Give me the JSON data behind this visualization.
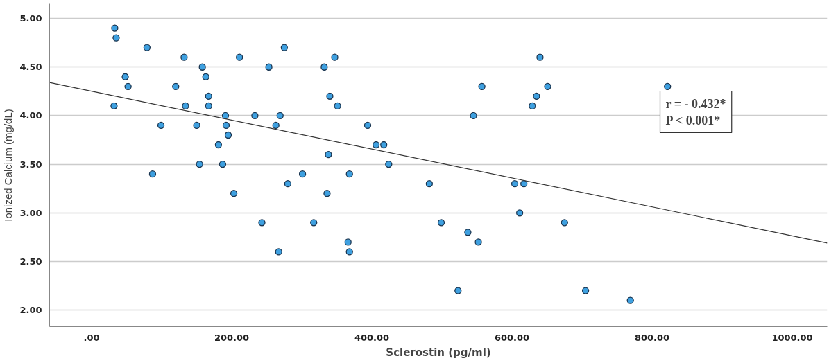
{
  "chart_data": {
    "type": "scatter",
    "xlabel": "Sclerostin (pg/ml)",
    "ylabel": "Ionized Calcium (mg/dL)",
    "xlim": [
      -60,
      1050
    ],
    "ylim": [
      1.83,
      5.15
    ],
    "xticks": [
      {
        "value": 0,
        "label": ".00"
      },
      {
        "value": 200,
        "label": "200.00"
      },
      {
        "value": 400,
        "label": "400.00"
      },
      {
        "value": 600,
        "label": "600.00"
      },
      {
        "value": 800,
        "label": "800.00"
      },
      {
        "value": 1000,
        "label": "1000.00"
      }
    ],
    "yticks": [
      {
        "value": 2,
        "label": "2.00"
      },
      {
        "value": 2.5,
        "label": "2.50"
      },
      {
        "value": 3,
        "label": "3.00"
      },
      {
        "value": 3.5,
        "label": "3.50"
      },
      {
        "value": 4,
        "label": "4.00"
      },
      {
        "value": 4.5,
        "label": "4.50"
      },
      {
        "value": 5,
        "label": "5.00"
      }
    ],
    "grid": "y",
    "marker": "circle",
    "annotations": [
      "r = - 0.432*",
      "P < 0.001*"
    ],
    "series": [
      {
        "color": "#3ea0e0",
        "x": [
          33,
          35,
          79,
          132,
          211,
          275,
          347,
          158,
          253,
          332,
          48,
          163,
          52,
          120,
          167,
          340,
          32,
          134,
          167,
          351,
          191,
          233,
          269,
          99,
          150,
          192,
          263,
          195,
          181,
          338,
          154,
          187,
          87,
          301,
          280,
          557,
          651,
          640,
          635,
          629,
          545,
          394,
          406,
          417,
          424,
          368,
          482,
          604,
          617,
          822,
          675,
          705,
          769,
          203,
          336,
          243,
          317,
          267,
          499,
          537,
          552,
          366,
          368,
          611,
          523
        ],
        "values": [
          4.9,
          4.8,
          4.7,
          4.6,
          4.6,
          4.7,
          4.6,
          4.5,
          4.5,
          4.5,
          4.4,
          4.4,
          4.3,
          4.3,
          4.2,
          4.2,
          4.1,
          4.1,
          4.1,
          4.1,
          4.0,
          4.0,
          4.0,
          3.9,
          3.9,
          3.9,
          3.9,
          3.8,
          3.7,
          3.6,
          3.5,
          3.5,
          3.4,
          3.4,
          3.3,
          4.3,
          4.3,
          4.6,
          4.2,
          4.1,
          4.0,
          3.9,
          3.7,
          3.7,
          3.5,
          3.4,
          3.3,
          3.3,
          3.3,
          4.3,
          2.9,
          2.2,
          2.1,
          3.2,
          3.2,
          2.9,
          2.9,
          2.6,
          2.9,
          2.8,
          2.7,
          2.7,
          2.6,
          3.0,
          2.2
        ]
      },
      {
        "type": "line",
        "color": "#333333",
        "marker": "none",
        "x": [
          -60,
          1050
        ],
        "values": [
          4.34,
          2.69
        ]
      }
    ]
  }
}
